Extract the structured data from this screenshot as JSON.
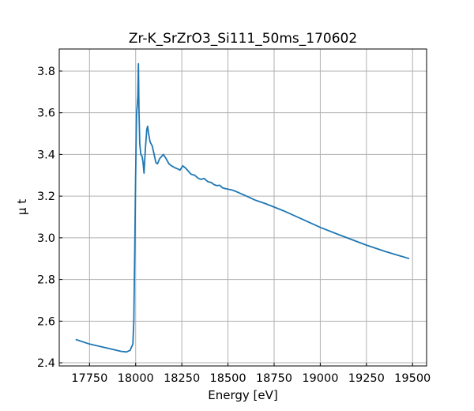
{
  "chart_data": {
    "type": "line",
    "title": "Zr-K_SrZrO3_Si111_50ms_170602",
    "xlabel": "Energy [eV]",
    "ylabel": "μ t",
    "xlim": [
      17586,
      19576
    ],
    "ylim": [
      2.385,
      3.906
    ],
    "xticks": [
      17750,
      18000,
      18250,
      18500,
      18750,
      19000,
      19250,
      19500
    ],
    "xtick_labels": [
      "17750",
      "18000",
      "18250",
      "18500",
      "18750",
      "19000",
      "19250",
      "19500"
    ],
    "yticks": [
      2.4,
      2.6,
      2.8,
      3.0,
      3.2,
      3.4,
      3.6,
      3.8
    ],
    "ytick_labels": [
      "2.4",
      "2.6",
      "2.8",
      "3.0",
      "3.2",
      "3.4",
      "3.6",
      "3.8"
    ],
    "grid": true,
    "color": "#1f77b4",
    "series": [
      {
        "name": "Zr-K_SrZrO3_Si111_50ms_170602",
        "x": [
          17675,
          17750,
          17850,
          17920,
          17950,
          17970,
          17985,
          17990,
          17995,
          18000,
          18005,
          18008,
          18012,
          18015,
          18018,
          18022,
          18028,
          18035,
          18040,
          18045,
          18052,
          18060,
          18065,
          18070,
          18078,
          18090,
          18100,
          18110,
          18118,
          18130,
          18150,
          18165,
          18180,
          18195,
          18215,
          18230,
          18240,
          18255,
          18270,
          18285,
          18300,
          18320,
          18340,
          18355,
          18370,
          18390,
          18410,
          18425,
          18440,
          18455,
          18470,
          18490,
          18520,
          18550,
          18600,
          18650,
          18700,
          18800,
          18900,
          19000,
          19100,
          19250,
          19350,
          19482
        ],
        "y": [
          2.512,
          2.49,
          2.47,
          2.455,
          2.452,
          2.46,
          2.49,
          2.6,
          2.95,
          3.3,
          3.6,
          3.63,
          3.68,
          3.835,
          3.62,
          3.45,
          3.4,
          3.39,
          3.36,
          3.31,
          3.42,
          3.52,
          3.535,
          3.5,
          3.46,
          3.44,
          3.4,
          3.36,
          3.355,
          3.38,
          3.4,
          3.38,
          3.355,
          3.345,
          3.335,
          3.33,
          3.325,
          3.345,
          3.335,
          3.32,
          3.305,
          3.3,
          3.285,
          3.28,
          3.285,
          3.27,
          3.265,
          3.255,
          3.25,
          3.252,
          3.24,
          3.235,
          3.23,
          3.22,
          3.2,
          3.18,
          3.165,
          3.13,
          3.09,
          3.05,
          3.015,
          2.965,
          2.935,
          2.9
        ]
      }
    ]
  }
}
